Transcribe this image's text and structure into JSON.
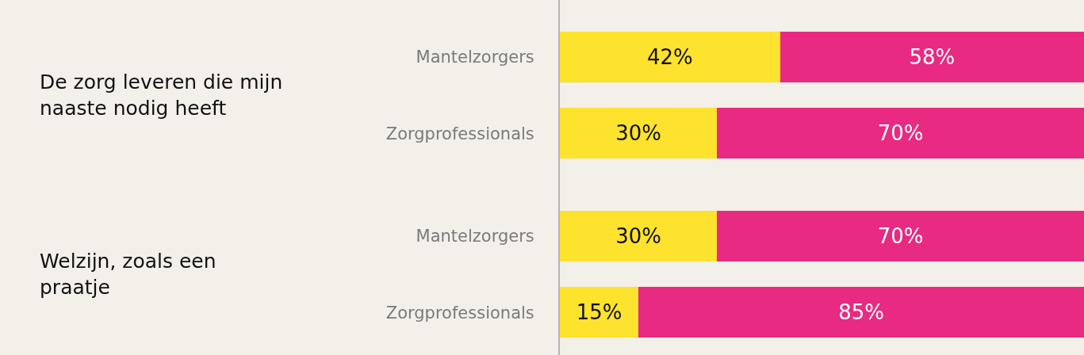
{
  "chart_data": {
    "type": "bar",
    "orientation": "horizontal",
    "stacked": true,
    "tick_labels": "y",
    "categories": [
      "Mantelzorgers",
      "Zorgprofessionals",
      "Mantelzorgers",
      "Zorgprofessionals"
    ],
    "series": [
      {
        "color": "#fde22e",
        "values": [
          42,
          30,
          30,
          15
        ],
        "value_labels": [
          "42%",
          "30%",
          "30%",
          "15%"
        ]
      },
      {
        "color": "#e82a82",
        "values": [
          58,
          70,
          70,
          85
        ],
        "value_labels": [
          "58%",
          "70%",
          "70%",
          "85%"
        ]
      }
    ],
    "annotations": [
      "De zorg leveren die mijn naaste nodig heeft",
      "Welzijn, zoals een praatje"
    ]
  }
}
